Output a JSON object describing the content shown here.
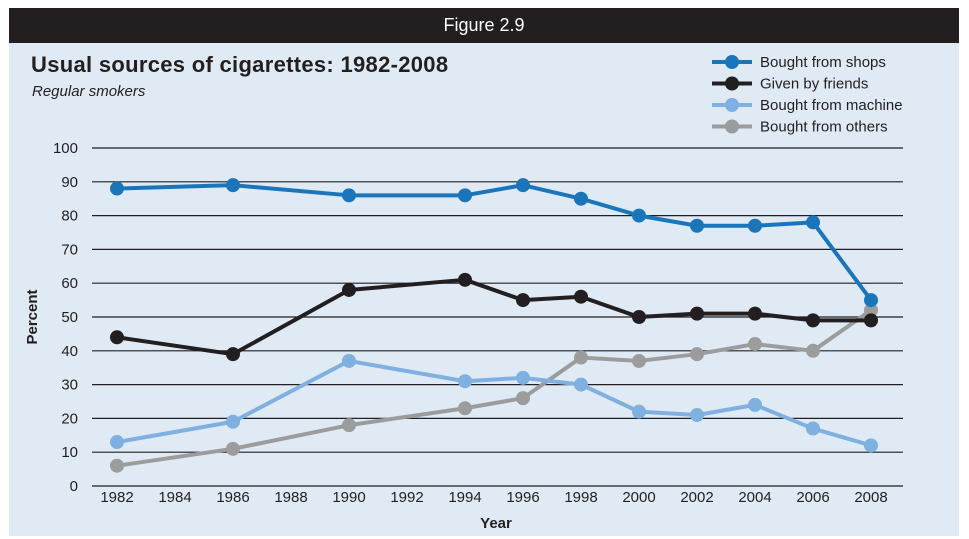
{
  "banner": "Figure 2.9",
  "chart_data": {
    "type": "line",
    "title": "Usual sources of cigarettes: 1982-2008",
    "subtitle": "Regular smokers",
    "xlabel": "Year",
    "ylabel": "Percent",
    "x": [
      1982,
      1986,
      1990,
      1994,
      1996,
      1998,
      2000,
      2002,
      2004,
      2006,
      2008
    ],
    "x_ticks": [
      "1982",
      "1984",
      "1986",
      "1988",
      "1990",
      "1992",
      "1994",
      "1996",
      "1998",
      "2000",
      "2002",
      "2004",
      "2006",
      "2008"
    ],
    "y_ticks": [
      "0",
      "10",
      "20",
      "30",
      "40",
      "50",
      "60",
      "70",
      "80",
      "90",
      "100"
    ],
    "xlim": [
      1982,
      2008
    ],
    "ylim": [
      0,
      100
    ],
    "grid": "horizontal",
    "legend_position": "top-right",
    "series": [
      {
        "name": "Bought from shops",
        "color": "#1b75bb",
        "values": [
          88,
          89,
          86,
          86,
          89,
          85,
          80,
          77,
          77,
          78,
          55
        ]
      },
      {
        "name": "Given by friends",
        "color": "#231f20",
        "values": [
          44,
          39,
          58,
          61,
          55,
          56,
          50,
          51,
          51,
          49,
          49
        ]
      },
      {
        "name": "Bought from machine",
        "color": "#7fb0e0",
        "values": [
          13,
          19,
          37,
          31,
          32,
          30,
          22,
          21,
          24,
          17,
          12
        ]
      },
      {
        "name": "Bought from others",
        "color": "#9c9c9c",
        "values": [
          6,
          11,
          18,
          23,
          26,
          38,
          37,
          39,
          42,
          40,
          52
        ]
      }
    ]
  }
}
